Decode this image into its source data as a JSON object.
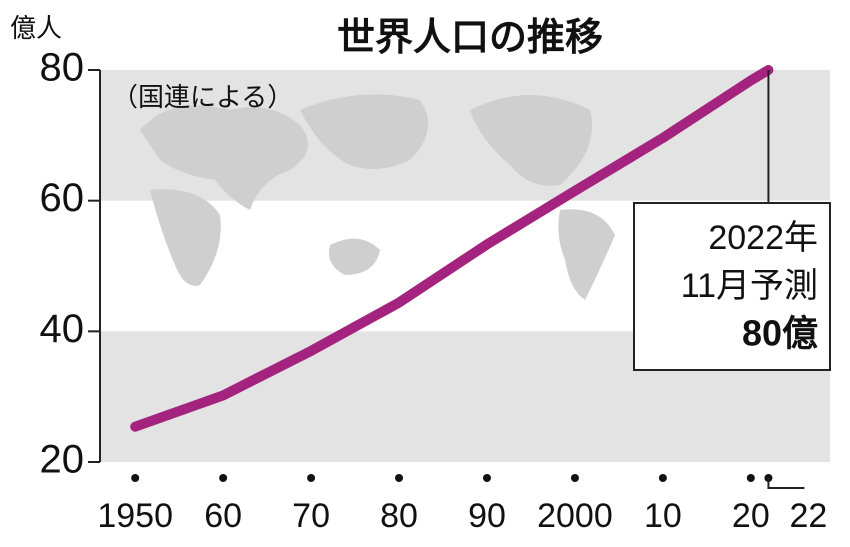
{
  "chart_data": {
    "type": "line",
    "title": "世界人口の推移",
    "y_axis_label": "億人",
    "subtitle": "（国連による）",
    "annotation": [
      "2022年",
      "11月予測",
      "80億"
    ],
    "x": [
      1950,
      1960,
      1970,
      1980,
      1990,
      2000,
      2010,
      2020,
      2022
    ],
    "values": [
      25.4,
      30.2,
      37.0,
      44.4,
      53.3,
      61.5,
      69.6,
      78.4,
      80.0
    ],
    "color": "#a3237f",
    "xlim": [
      1946,
      2029
    ],
    "xticks": [
      1950,
      {
        "value": 1960,
        "label": "60"
      },
      {
        "value": 1970,
        "label": "70"
      },
      {
        "value": 1980,
        "label": "80"
      },
      {
        "value": 1990,
        "label": "90"
      },
      2000,
      {
        "value": 2010,
        "label": "10"
      },
      {
        "value": 2020,
        "label": "20"
      },
      {
        "value": 2022,
        "label": "22"
      }
    ],
    "ylim": [
      20,
      80
    ],
    "yticks": [
      20,
      40,
      60,
      80
    ],
    "grid": true
  }
}
